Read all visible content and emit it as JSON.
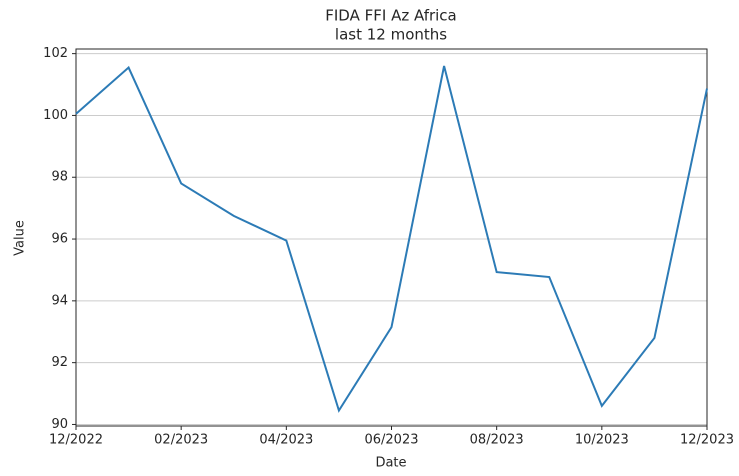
{
  "chart_data": {
    "type": "line",
    "title": "FIDA FFI Az Africa",
    "subtitle": "last 12 months",
    "x_label": "Date",
    "y_label": "Value",
    "categories": [
      "12/2022",
      null,
      "02/2023",
      null,
      "04/2023",
      null,
      "06/2023",
      null,
      "08/2023",
      null,
      "10/2023",
      null,
      "12/2023"
    ],
    "series": [
      {
        "name": "FIDA FFI Az Africa",
        "color": "#2c7bb6",
        "values": [
          100.05,
          101.55,
          97.8,
          96.75,
          95.95,
          90.45,
          93.15,
          101.6,
          94.93,
          94.77,
          90.6,
          92.8,
          100.87
        ]
      }
    ],
    "ylim": [
      89.95,
      102.15
    ],
    "yticks": [
      90,
      92,
      94,
      96,
      98,
      100,
      102
    ],
    "grid": true,
    "legend": false
  }
}
